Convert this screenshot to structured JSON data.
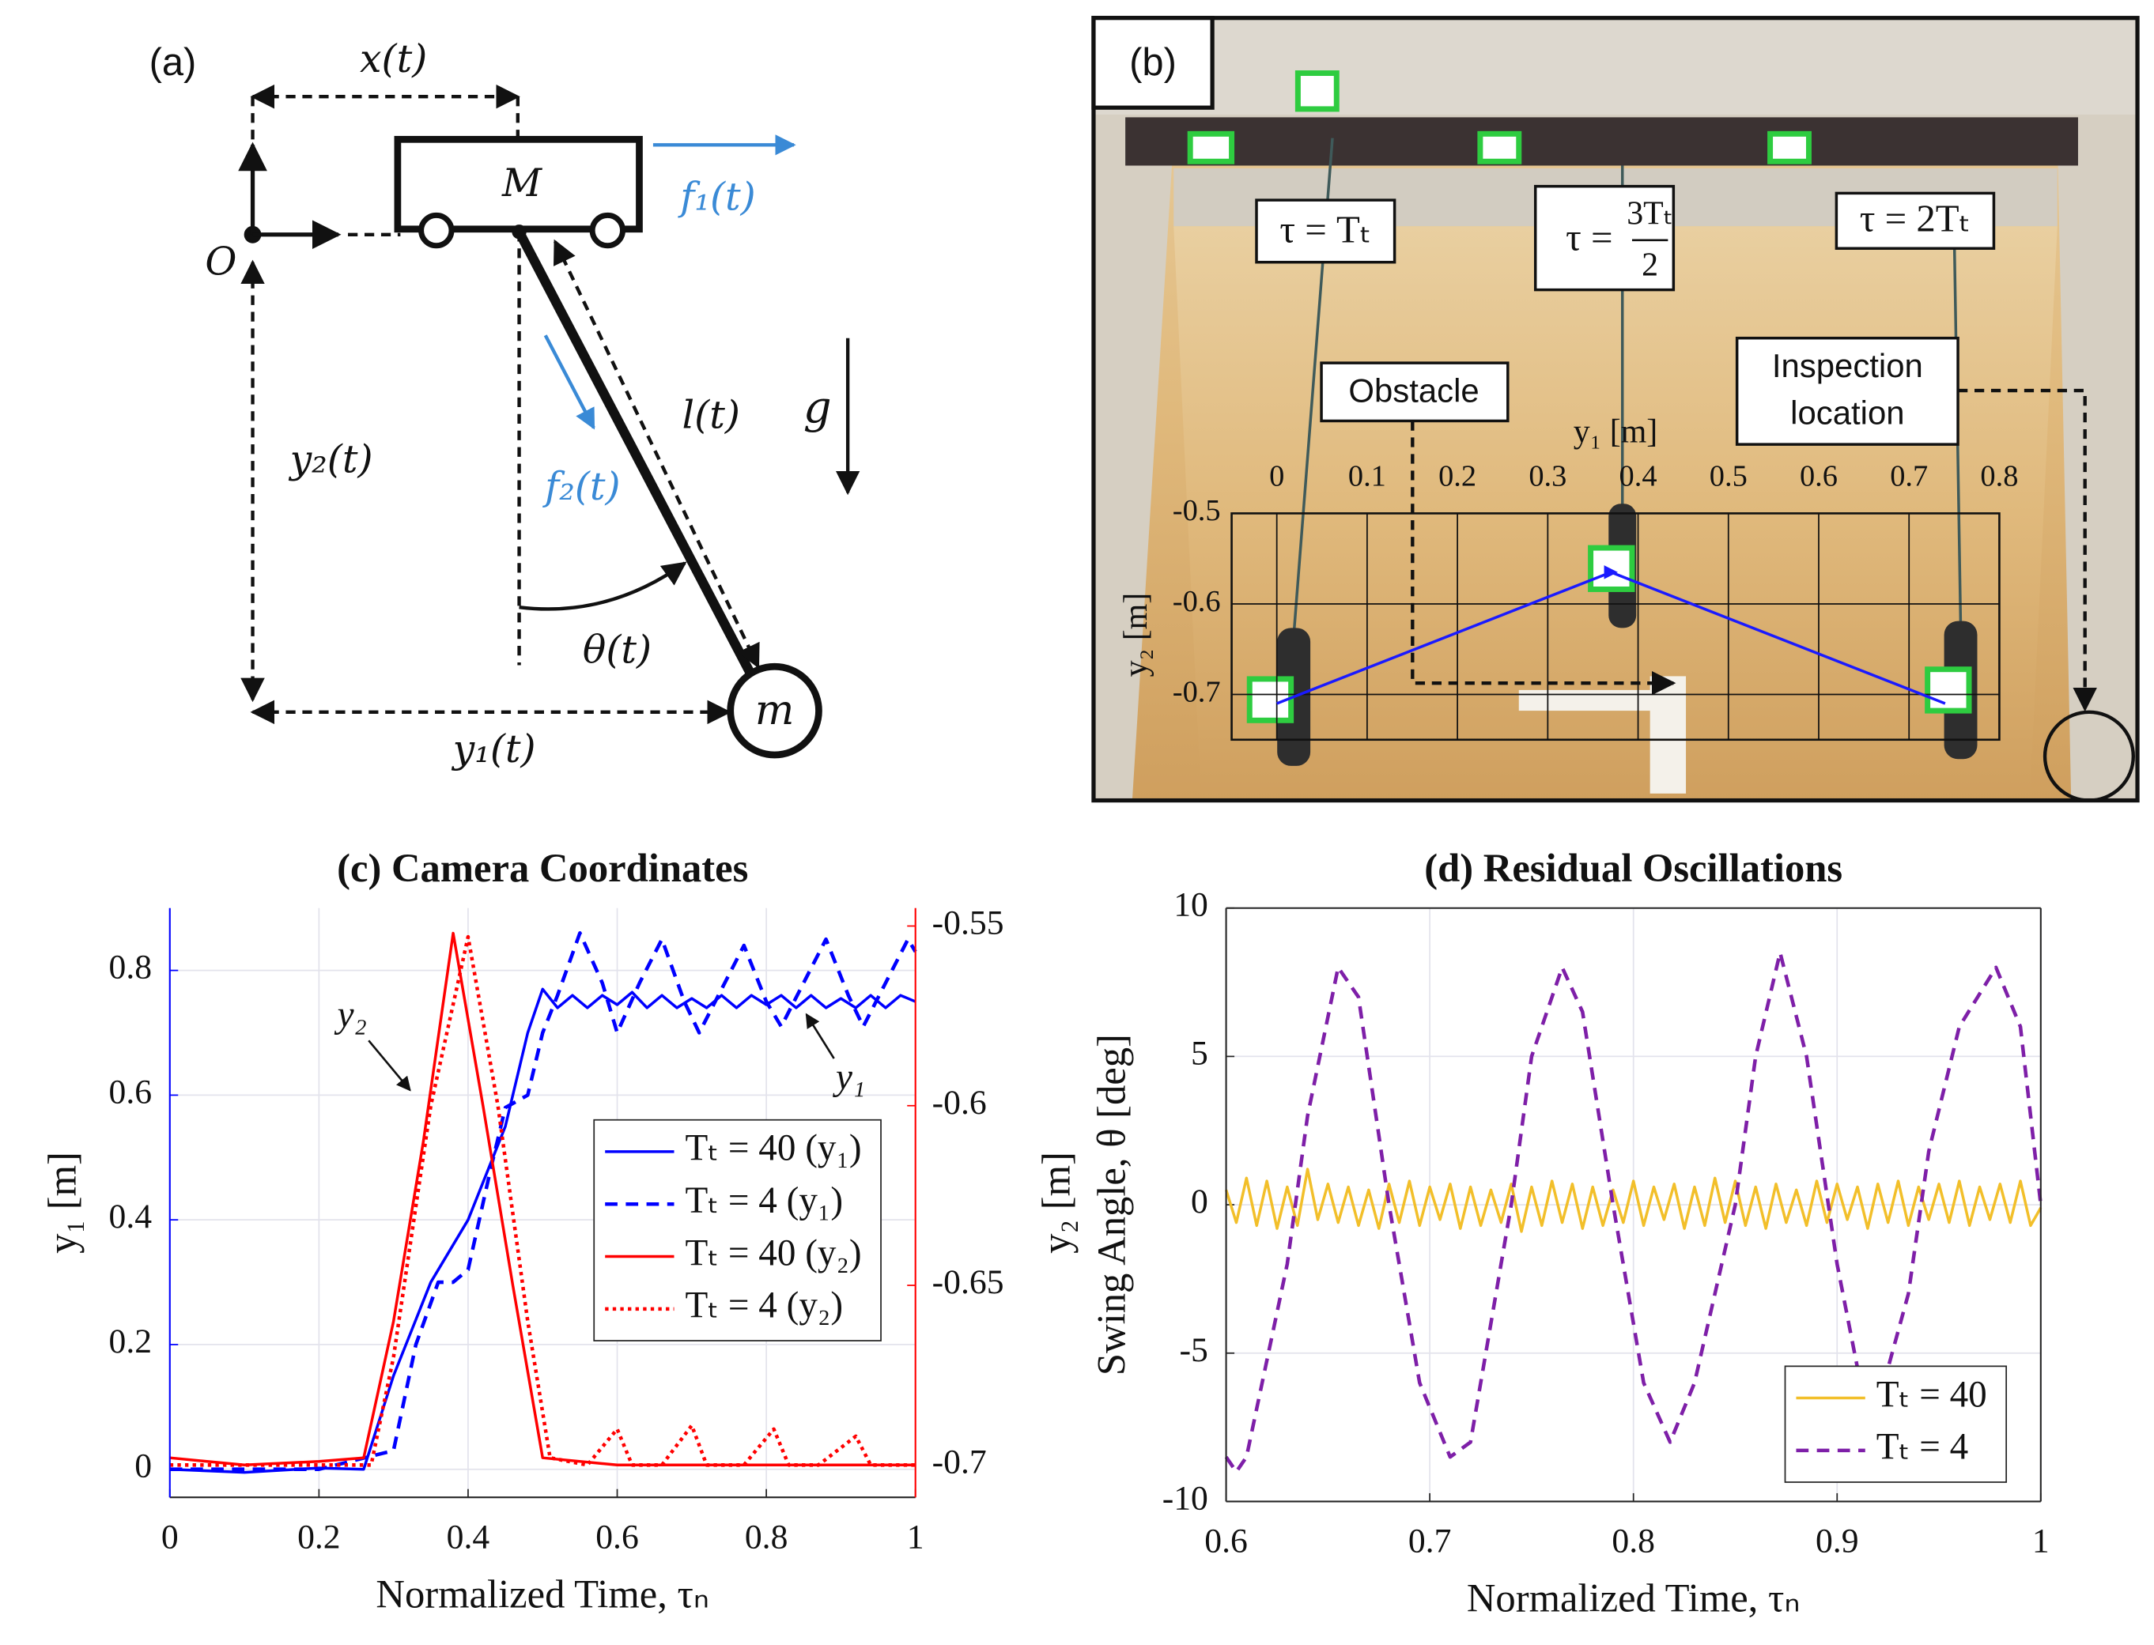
{
  "panel_a": {
    "label": "(a)",
    "x": "x(t)",
    "cart": "M",
    "f1": "f₁(t)",
    "origin": "O",
    "length": "l(t)",
    "gravity": "g",
    "y2": "y₂(t)",
    "f2": "f₂(t)",
    "theta": "θ(t)",
    "mass": "m",
    "y1": "y₁(t)"
  },
  "panel_b": {
    "label": "(b)",
    "tau_first": "τ = Tₜ",
    "tau_middle": {
      "prefix": "τ =",
      "numerator": "3Tₜ",
      "denominator": "2"
    },
    "tau_last": "τ = 2Tₜ",
    "obstacle": "Obstacle",
    "inspection": [
      "Inspection",
      "location"
    ],
    "xlabel": "y₁ [m]",
    "ylabel": "y₂ [m]",
    "xlim": [
      -0.05,
      0.8
    ],
    "ylim": [
      -0.5,
      -0.75
    ],
    "xticks": [
      0,
      0.1,
      0.2,
      0.3,
      0.4,
      0.5,
      0.6,
      0.7,
      0.8
    ],
    "yticks": [
      -0.5,
      -0.6,
      -0.7
    ],
    "trajectory": {
      "x": [
        0,
        0.37,
        0.74
      ],
      "y": [
        -0.71,
        -0.565,
        -0.71
      ],
      "color": "#1a1aff"
    }
  },
  "chart_data": [
    {
      "type": "line",
      "title": "(c) Camera Coordinates",
      "xlabel": "Normalized Time, τₙ",
      "ylabel": "y₁ [m]",
      "y2label": "y₂ [m]",
      "ycolor": "#0000ff",
      "y2color": "#ff0000",
      "xlim": [
        0,
        1
      ],
      "xticks": [
        0,
        0.2,
        0.4,
        0.6,
        0.8,
        1
      ],
      "ylim": [
        -0.045,
        0.9
      ],
      "yticks": [
        0,
        0.2,
        0.4,
        0.6,
        0.8
      ],
      "y2lim": [
        -0.709,
        -0.545
      ],
      "y2ticks": [
        -0.7,
        -0.65,
        -0.6,
        -0.55
      ],
      "grid": true,
      "legend": "center right",
      "annotations": [
        "y₂",
        "y₁"
      ],
      "series": [
        {
          "name": "Tₜ = 40 (y₁)",
          "color": "#0000ff",
          "style": "solid",
          "x": [
            0,
            0.1,
            0.2,
            0.26,
            0.3,
            0.35,
            0.4,
            0.45,
            0.48,
            0.5,
            0.52,
            0.54,
            0.56,
            0.58,
            0.6,
            0.62,
            0.64,
            0.66,
            0.68,
            0.7,
            0.72,
            0.74,
            0.76,
            0.78,
            0.8,
            0.82,
            0.84,
            0.86,
            0.88,
            0.9,
            0.92,
            0.94,
            0.96,
            0.98,
            1
          ],
          "values": [
            0,
            -0.005,
            0.002,
            0,
            0.15,
            0.3,
            0.4,
            0.55,
            0.7,
            0.77,
            0.74,
            0.76,
            0.74,
            0.76,
            0.745,
            0.765,
            0.74,
            0.76,
            0.74,
            0.755,
            0.74,
            0.76,
            0.74,
            0.76,
            0.745,
            0.76,
            0.74,
            0.76,
            0.74,
            0.755,
            0.74,
            0.76,
            0.74,
            0.76,
            0.75
          ]
        },
        {
          "name": "Tₜ = 4 (y₁)",
          "color": "#0000ff",
          "style": "dashed",
          "x": [
            0,
            0.1,
            0.2,
            0.3,
            0.33,
            0.36,
            0.38,
            0.4,
            0.43,
            0.45,
            0.48,
            0.5,
            0.52,
            0.55,
            0.58,
            0.6,
            0.63,
            0.66,
            0.69,
            0.71,
            0.74,
            0.77,
            0.8,
            0.82,
            0.85,
            0.88,
            0.91,
            0.93,
            0.96,
            0.99,
            1
          ],
          "values": [
            0,
            0,
            0,
            0.03,
            0.2,
            0.3,
            0.3,
            0.32,
            0.48,
            0.58,
            0.6,
            0.7,
            0.76,
            0.86,
            0.78,
            0.7,
            0.78,
            0.85,
            0.75,
            0.7,
            0.77,
            0.84,
            0.75,
            0.71,
            0.78,
            0.85,
            0.76,
            0.71,
            0.78,
            0.85,
            0.83
          ]
        },
        {
          "name": "Tₜ = 40 (y₂)",
          "color": "#ff0000",
          "style": "solid",
          "axis": "y2",
          "x": [
            0,
            0.1,
            0.2,
            0.26,
            0.3,
            0.34,
            0.38,
            0.42,
            0.46,
            0.5,
            0.6,
            0.8,
            1
          ],
          "values": [
            -0.698,
            -0.7,
            -0.699,
            -0.698,
            -0.66,
            -0.61,
            -0.552,
            -0.6,
            -0.65,
            -0.698,
            -0.7,
            -0.7,
            -0.7
          ]
        },
        {
          "name": "Tₜ = 4 (y₂)",
          "color": "#ff0000",
          "style": "dotted",
          "axis": "y2",
          "x": [
            0,
            0.27,
            0.3,
            0.35,
            0.4,
            0.44,
            0.48,
            0.51,
            0.56,
            0.6,
            0.62,
            0.66,
            0.7,
            0.72,
            0.77,
            0.81,
            0.83,
            0.87,
            0.92,
            0.94,
            1
          ],
          "values": [
            -0.7,
            -0.7,
            -0.67,
            -0.6,
            -0.553,
            -0.6,
            -0.66,
            -0.698,
            -0.7,
            -0.69,
            -0.7,
            -0.7,
            -0.689,
            -0.7,
            -0.7,
            -0.69,
            -0.7,
            -0.7,
            -0.692,
            -0.7,
            -0.7
          ]
        }
      ]
    },
    {
      "type": "line",
      "title": "(d) Residual Oscillations",
      "xlabel": "Normalized Time, τₙ",
      "ylabel": "Swing Angle, θ [deg]",
      "xlim": [
        0.6,
        1
      ],
      "xticks": [
        0.6,
        0.7,
        0.8,
        0.9,
        1
      ],
      "ylim": [
        -10,
        10
      ],
      "yticks": [
        -10,
        -5,
        0,
        5,
        10
      ],
      "grid": true,
      "legend": "lower right",
      "series": [
        {
          "name": "Tₜ = 40",
          "color": "#f2bf2a",
          "style": "solid",
          "x": [
            0.6,
            0.605,
            0.61,
            0.615,
            0.62,
            0.625,
            0.63,
            0.635,
            0.64,
            0.645,
            0.65,
            0.655,
            0.66,
            0.665,
            0.67,
            0.675,
            0.68,
            0.685,
            0.69,
            0.695,
            0.7,
            0.705,
            0.71,
            0.715,
            0.72,
            0.725,
            0.73,
            0.735,
            0.74,
            0.745,
            0.75,
            0.755,
            0.76,
            0.765,
            0.77,
            0.775,
            0.78,
            0.785,
            0.79,
            0.795,
            0.8,
            0.805,
            0.81,
            0.815,
            0.82,
            0.825,
            0.83,
            0.835,
            0.84,
            0.845,
            0.85,
            0.855,
            0.86,
            0.865,
            0.87,
            0.875,
            0.88,
            0.885,
            0.89,
            0.895,
            0.9,
            0.905,
            0.91,
            0.915,
            0.92,
            0.925,
            0.93,
            0.935,
            0.94,
            0.945,
            0.95,
            0.955,
            0.96,
            0.965,
            0.97,
            0.975,
            0.98,
            0.985,
            0.99,
            0.995,
            1
          ],
          "values": [
            0.5,
            -0.6,
            0.9,
            -0.7,
            0.8,
            -0.8,
            0.6,
            -0.7,
            1.2,
            -0.5,
            0.7,
            -0.6,
            0.6,
            -0.7,
            0.5,
            -0.8,
            0.7,
            -0.6,
            0.8,
            -0.7,
            0.6,
            -0.5,
            0.7,
            -0.8,
            0.6,
            -0.7,
            0.5,
            -0.6,
            0.7,
            -0.9,
            0.6,
            -0.7,
            0.8,
            -0.6,
            0.7,
            -0.8,
            0.6,
            -0.7,
            0.5,
            -0.6,
            0.8,
            -0.7,
            0.6,
            -0.5,
            0.7,
            -0.8,
            0.6,
            -0.7,
            0.9,
            -0.6,
            0.8,
            -0.7,
            0.6,
            -0.8,
            0.7,
            -0.6,
            0.5,
            -0.7,
            0.8,
            -0.6,
            0.7,
            -0.5,
            0.6,
            -0.8,
            0.7,
            -0.6,
            0.8,
            -0.7,
            0.6,
            -0.5,
            0.7,
            -0.6,
            0.8,
            -0.7,
            0.6,
            -0.5,
            0.7,
            -0.6,
            0.8,
            -0.7,
            -0.1
          ]
        },
        {
          "name": "Tₜ = 4",
          "color": "#7e1fa8",
          "style": "dashed",
          "x": [
            0.6,
            0.605,
            0.61,
            0.63,
            0.64,
            0.655,
            0.665,
            0.68,
            0.695,
            0.71,
            0.72,
            0.74,
            0.75,
            0.765,
            0.775,
            0.79,
            0.805,
            0.818,
            0.83,
            0.85,
            0.86,
            0.872,
            0.885,
            0.9,
            0.91,
            0.925,
            0.935,
            0.945,
            0.96,
            0.978,
            0.99,
            1
          ],
          "values": [
            -8.5,
            -9,
            -8.5,
            -2,
            3,
            8,
            7,
            0,
            -6,
            -8.5,
            -8,
            0,
            5,
            8,
            6.5,
            0,
            -6,
            -8,
            -6,
            0,
            5,
            8.5,
            5,
            -2,
            -5.5,
            -5.5,
            -3,
            1.8,
            6,
            8,
            6,
            0
          ]
        }
      ]
    }
  ]
}
